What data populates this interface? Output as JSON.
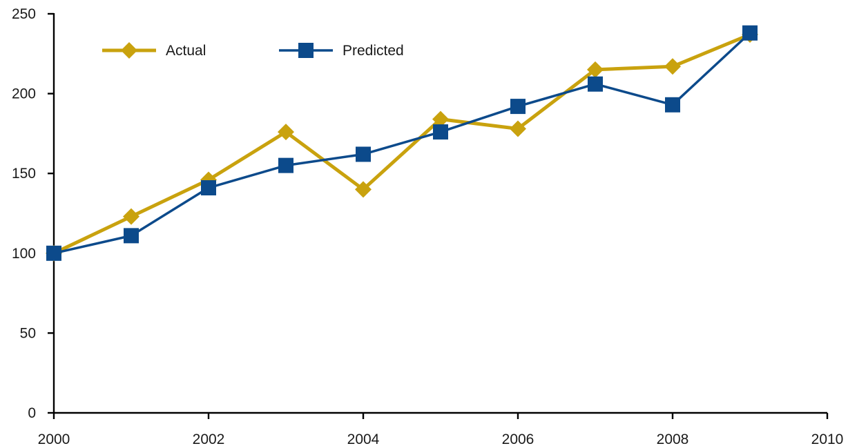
{
  "chart_data": {
    "type": "line",
    "title": "",
    "xlabel": "",
    "ylabel": "",
    "xlim": [
      2000,
      2010
    ],
    "ylim": [
      0,
      250
    ],
    "x_ticks": [
      2000,
      2002,
      2004,
      2006,
      2008,
      2010
    ],
    "y_ticks": [
      0,
      50,
      100,
      150,
      200,
      250
    ],
    "grid": false,
    "legend": "top-left",
    "x": [
      2000,
      2001,
      2002,
      2003,
      2004,
      2005,
      2006,
      2007,
      2008,
      2009
    ],
    "series": [
      {
        "name": "Actual",
        "color": "#C9A20E",
        "marker": "diamond",
        "values": [
          100,
          123,
          146,
          176,
          140,
          184,
          178,
          215,
          217,
          237
        ]
      },
      {
        "name": "Predicted",
        "color": "#0C4A8B",
        "marker": "square",
        "values": [
          100,
          111,
          141,
          155,
          162,
          176,
          192,
          206,
          193,
          238
        ]
      }
    ]
  }
}
